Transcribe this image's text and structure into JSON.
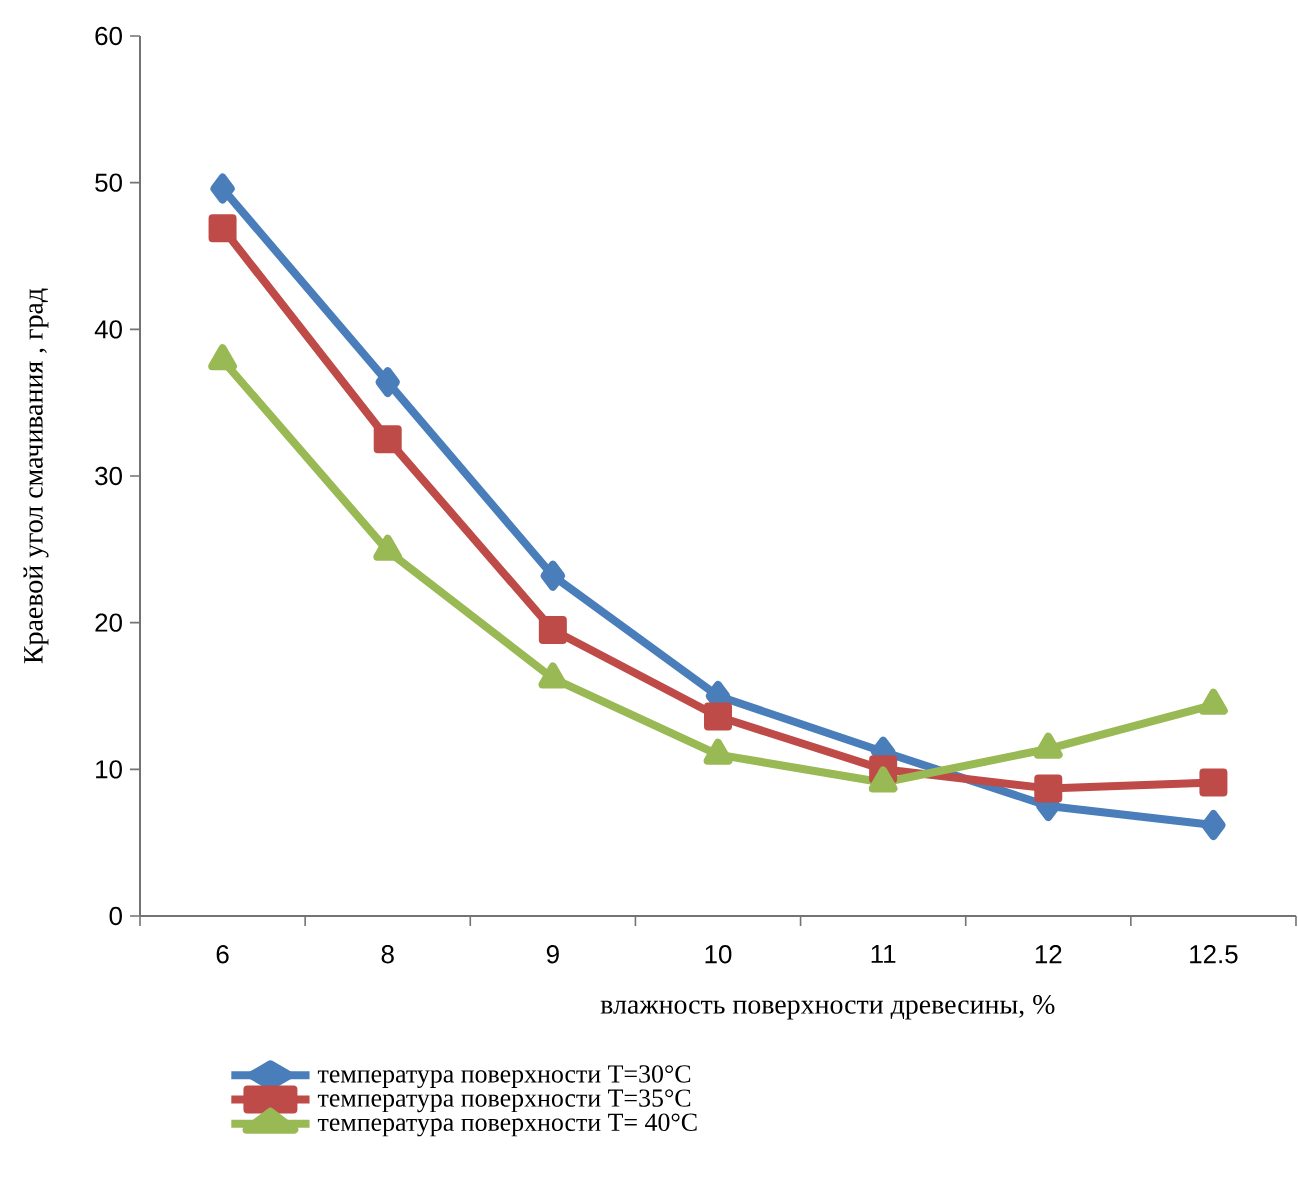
{
  "chart_data": {
    "type": "line",
    "xlabel": "влажность поверхности древесины, %",
    "ylabel": "Краевой угол смачивания , град",
    "categories": [
      "6",
      "8",
      "9",
      "10",
      "11",
      "12",
      "12.5"
    ],
    "series": [
      {
        "name": "температура поверхности  T=30°C",
        "color": "#4a7ebb",
        "marker": "diamond",
        "values": [
          49.6,
          36.4,
          23.2,
          15.0,
          11.2,
          7.5,
          6.2
        ]
      },
      {
        "name": "температура поверхности T=35°C",
        "color": "#be4b48",
        "marker": "square",
        "values": [
          46.9,
          32.5,
          19.5,
          13.6,
          10.0,
          8.7,
          9.1
        ]
      },
      {
        "name": "температура поверхности T= 40°C",
        "color": "#98b954",
        "marker": "triangle",
        "values": [
          37.9,
          24.9,
          16.2,
          11.0,
          9.1,
          11.4,
          14.4
        ]
      }
    ],
    "ylim": [
      0,
      60
    ],
    "yticks": [
      0,
      10,
      20,
      30,
      40,
      50,
      60
    ],
    "grid": false,
    "legend": "bottom",
    "line_style": "solid"
  }
}
